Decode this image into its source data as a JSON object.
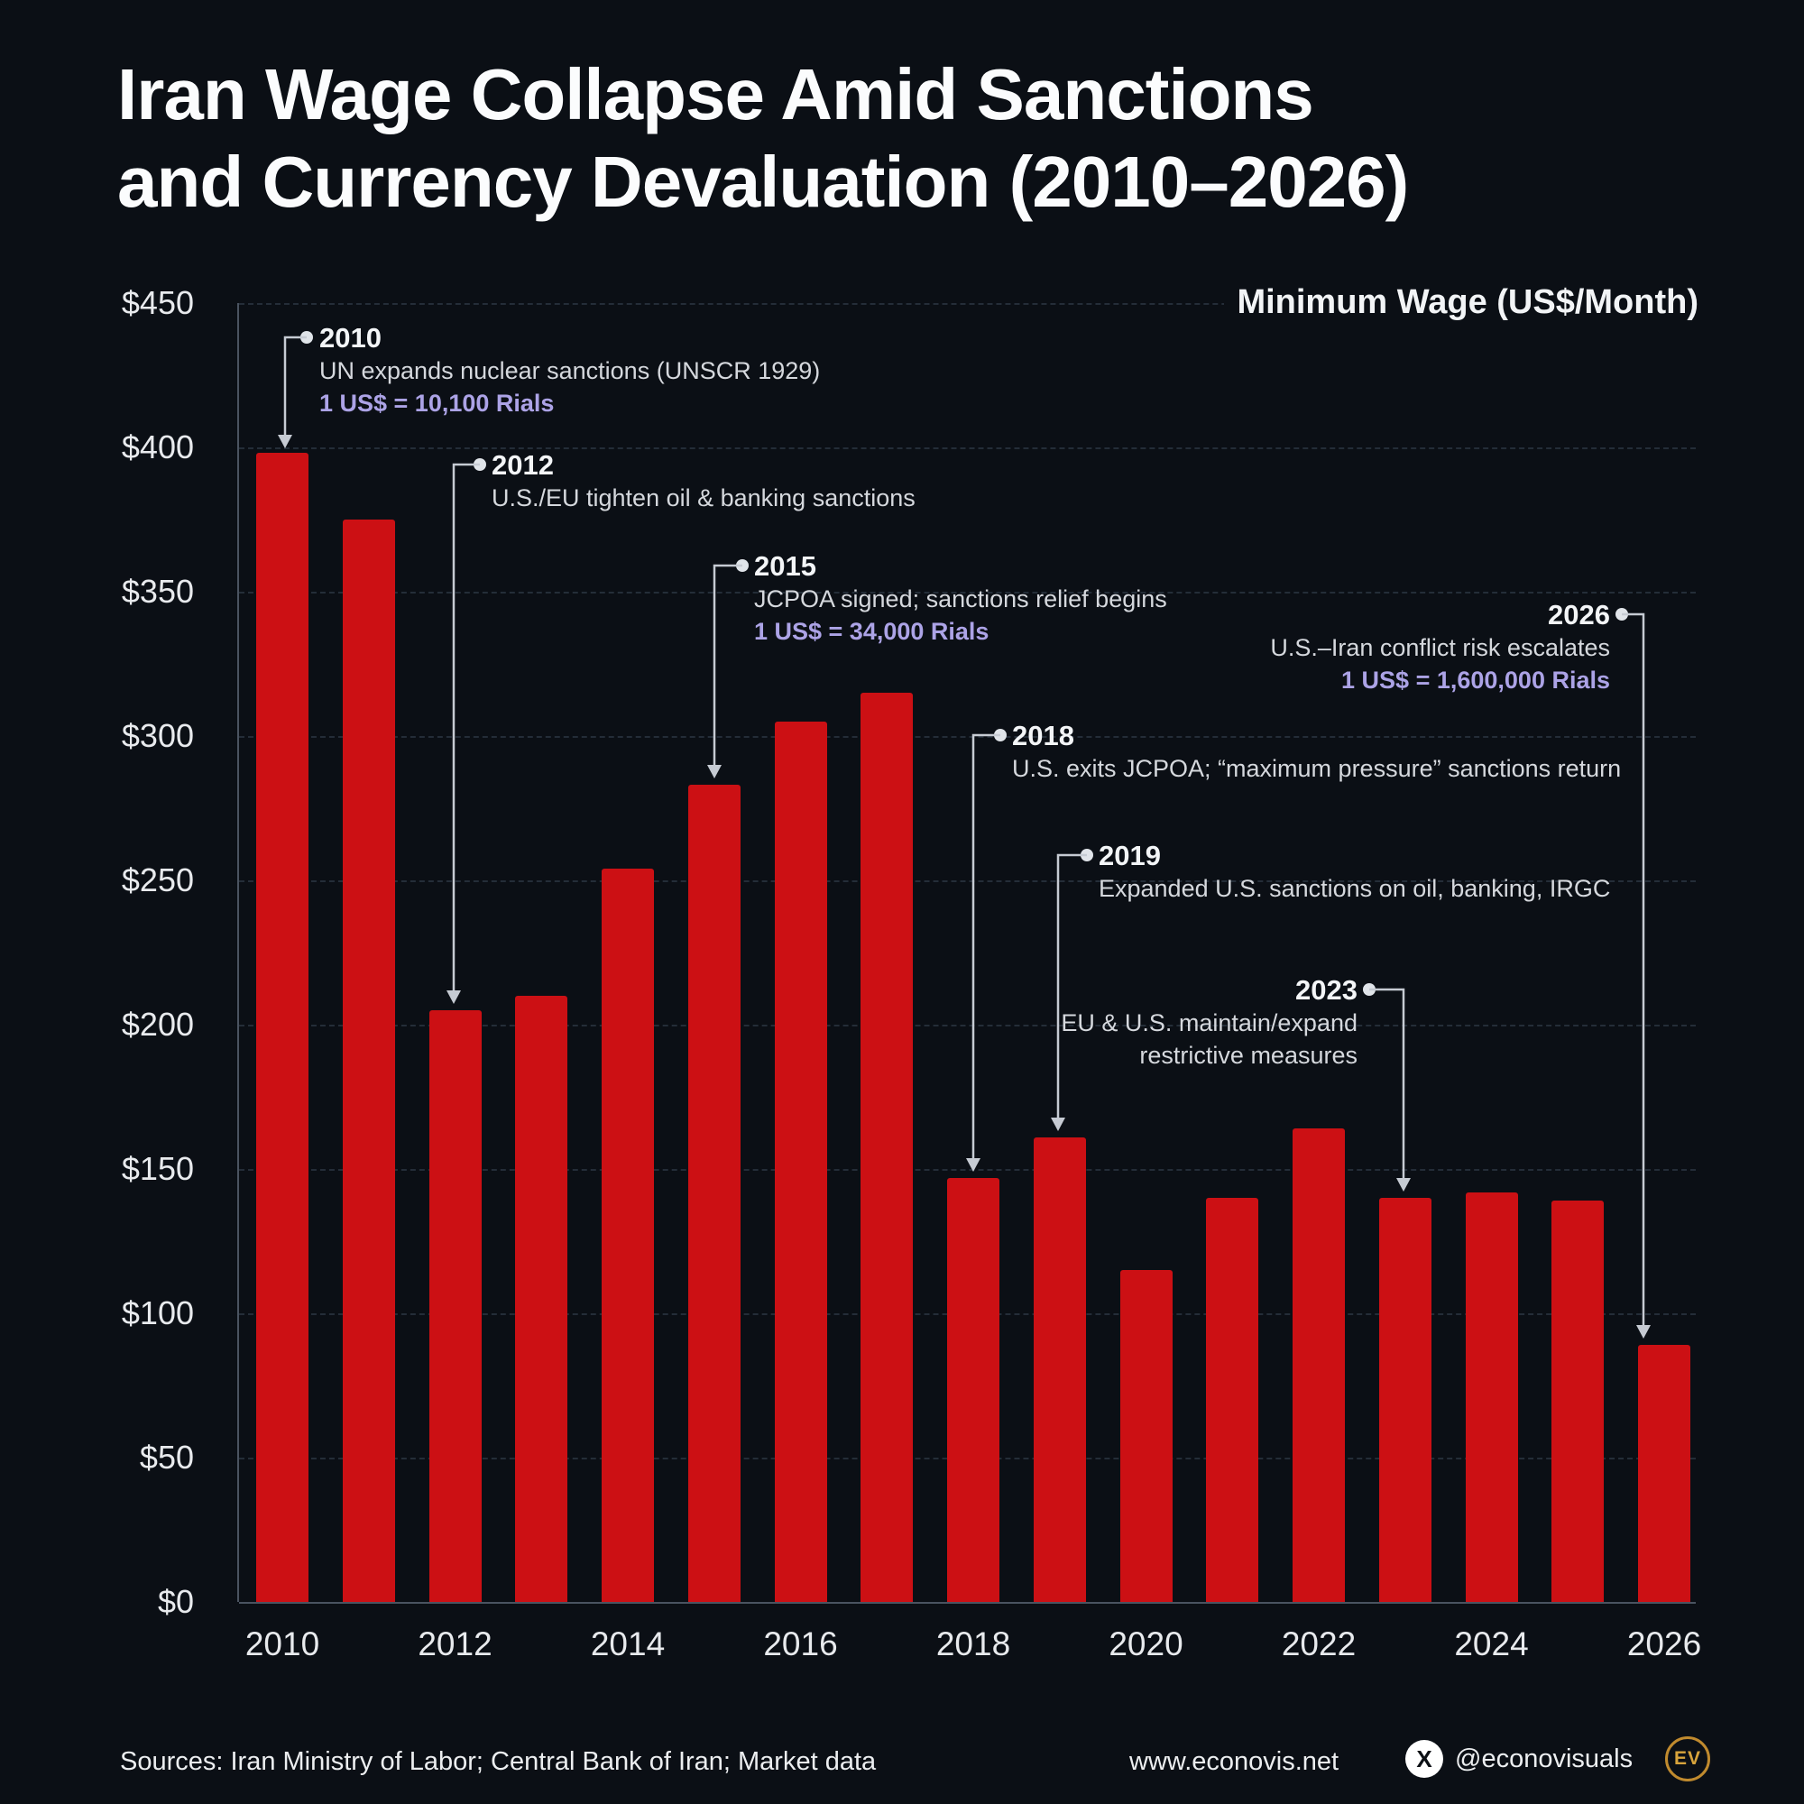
{
  "title": {
    "line1": "Iran Wage Collapse Amid Sanctions",
    "line2": "and Currency Devaluation (2010–2026)"
  },
  "chart_data": {
    "type": "bar",
    "title": "Iran Wage Collapse Amid Sanctions and Currency Devaluation (2010–2026)",
    "ylabel": "Minimum Wage (US$/Month)",
    "xlabel": "",
    "categories": [
      2010,
      2011,
      2012,
      2013,
      2014,
      2015,
      2016,
      2017,
      2018,
      2019,
      2020,
      2021,
      2022,
      2023,
      2024,
      2025,
      2026
    ],
    "values": [
      398,
      375,
      205,
      210,
      254,
      283,
      305,
      315,
      147,
      161,
      115,
      140,
      164,
      140,
      142,
      139,
      89
    ],
    "ylim": [
      0,
      450
    ],
    "y_tick_step": 50,
    "y_tick_prefix": "$",
    "x_tick_step": 2,
    "grid": true,
    "legend": false,
    "bar_color": "#cc1014",
    "annotations": [
      {
        "year": "2010",
        "lines": [
          "UN expands nuclear sanctions (UNSCR 1929)"
        ],
        "rate": "1 US$ = 10,100 Rials"
      },
      {
        "year": "2012",
        "lines": [
          "U.S./EU tighten oil & banking sanctions"
        ]
      },
      {
        "year": "2015",
        "lines": [
          "JCPOA signed; sanctions relief begins"
        ],
        "rate": "1 US$ = 34,000 Rials"
      },
      {
        "year": "2018",
        "lines": [
          "U.S. exits JCPOA; “maximum pressure” sanctions return"
        ]
      },
      {
        "year": "2019",
        "lines": [
          "Expanded U.S. sanctions on oil, banking, IRGC"
        ]
      },
      {
        "year": "2023",
        "lines": [
          "EU & U.S. maintain/expand",
          "restrictive measures"
        ]
      },
      {
        "year": "2026",
        "lines": [
          "U.S.–Iran conflict risk escalates"
        ],
        "rate": "1 US$ = 1,600,000 Rials"
      }
    ]
  },
  "colors": {
    "background": "#0b0f15",
    "bar": "#cc1014",
    "accent_lavender": "#aca3e6",
    "text_primary": "#f5f6f7",
    "text_secondary": "#d5d8dd",
    "logo_gold": "#d8a43c"
  },
  "footer": {
    "sources": "Sources: Iran Ministry of Labor; Central Bank of Iran; Market data",
    "website": "www.econovis.net",
    "social_handle": "@econovisuals",
    "logo_text": "EV"
  }
}
